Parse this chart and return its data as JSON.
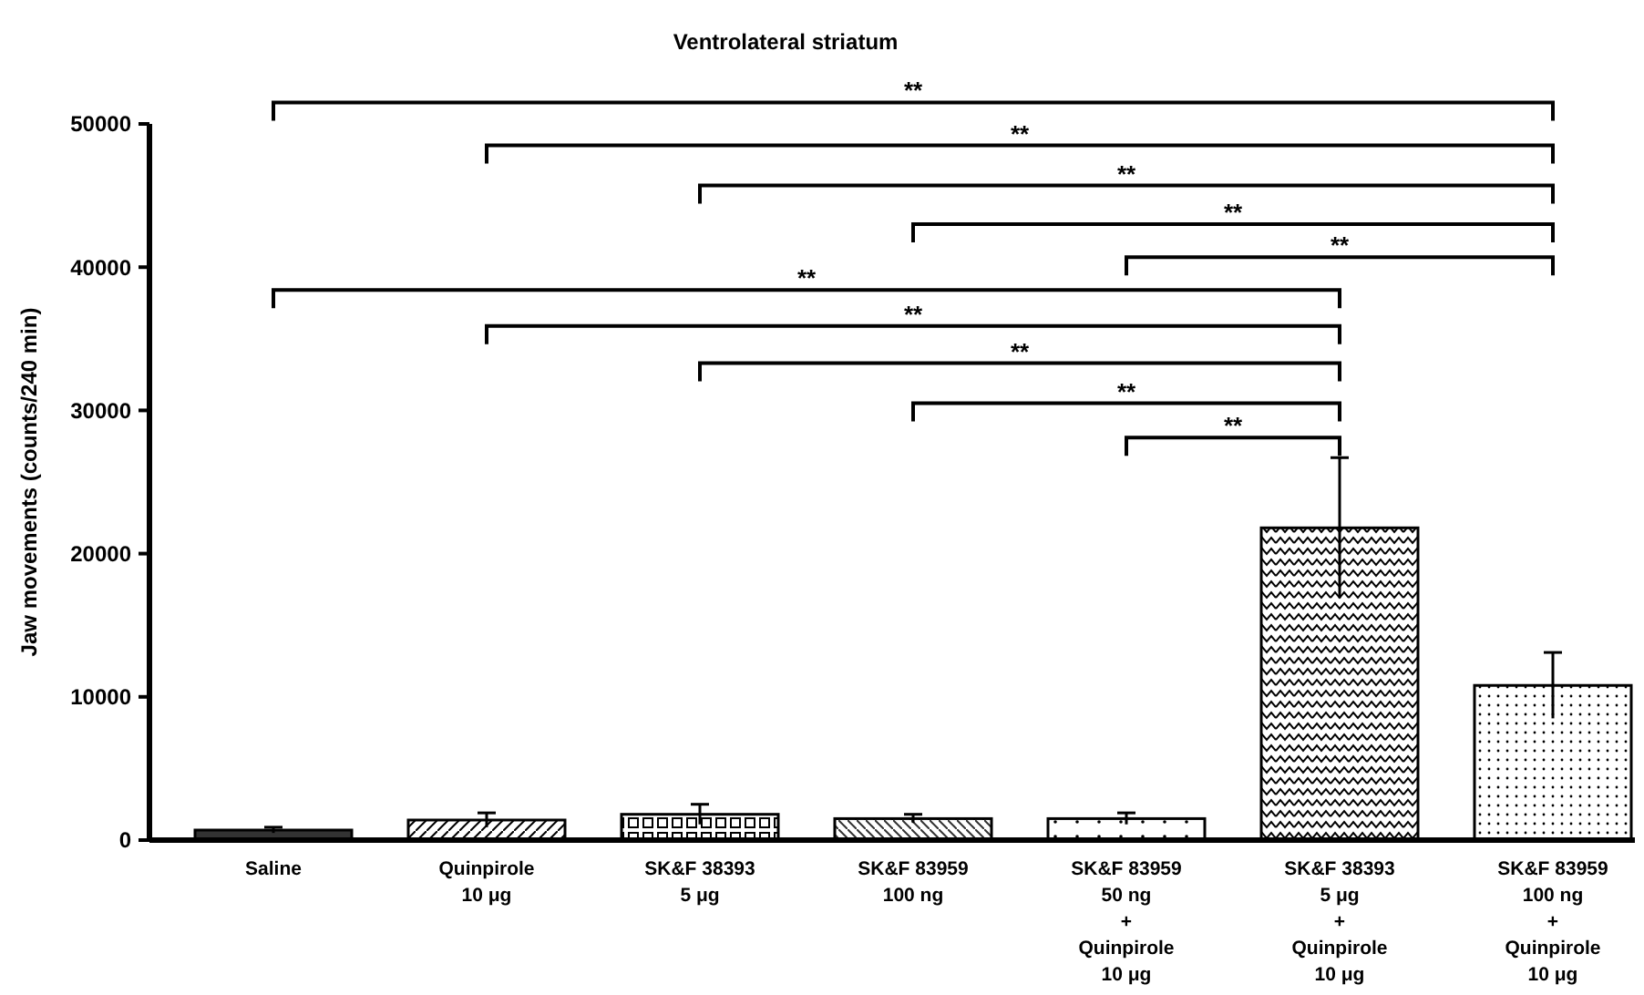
{
  "chart_data": {
    "type": "bar",
    "title": "Ventrolateral striatum",
    "ylabel": "Jaw movements (counts/240 min)",
    "categories": [
      "Saline",
      "Quinpirole\n10 μg",
      "SK&F 38393\n5 μg",
      "SK&F 83959\n100 ng",
      "SK&F 83959\n50 ng\n+\nQuinpirole\n10 μg",
      "SK&F 38393\n5 μg\n+\nQuinpirole\n10 μg",
      "SK&F 83959\n100 ng\n+\nQuinpirole\n10 μg"
    ],
    "values": [
      700,
      1400,
      1800,
      1500,
      1500,
      21800,
      10800
    ],
    "errors": [
      200,
      500,
      700,
      300,
      400,
      4900,
      2300
    ],
    "ylim": [
      0,
      50000
    ],
    "yticks": [
      0,
      10000,
      20000,
      30000,
      40000,
      50000
    ],
    "grid": false,
    "annotations": [
      "**",
      "**",
      "**",
      "**",
      "**",
      "**",
      "**",
      "**",
      "**",
      "**"
    ]
  }
}
